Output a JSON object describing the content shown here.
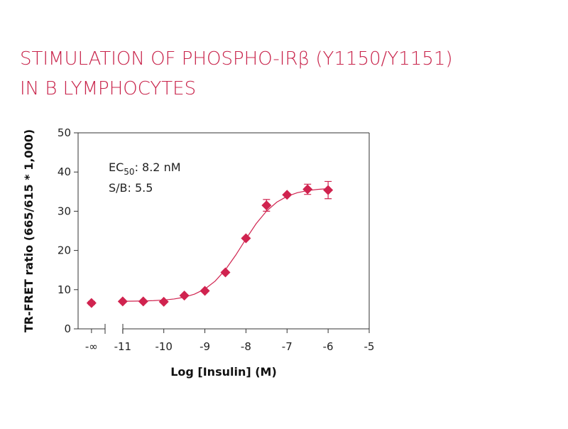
{
  "chart_data": {
    "type": "scatter",
    "title": [
      "STIMULATION OF PHOSPHO-IRβ (Y1150/Y1151)",
      "IN B LYMPHOCYTES"
    ],
    "x_label": "Log [Insulin] (M)",
    "y_label": "TR-FRET ratio (665/615 * 1,000)",
    "annotations": {
      "ec_prefix": "EC",
      "ec_sub": "50",
      "ec_rest": ": 8.2 nM",
      "sb": "S/B: 5.5"
    },
    "xlim": [
      -12.086,
      -5
    ],
    "ylim": [
      0,
      50
    ],
    "xticks": [
      {
        "value": -11.76,
        "label": "-∞"
      },
      -11,
      -10,
      -9,
      -8,
      -7,
      -6,
      -5
    ],
    "yticks": [
      0,
      10,
      20,
      30,
      40,
      50
    ],
    "color": "#d0234f",
    "x": [
      -11.76,
      -11,
      -10.5,
      -10,
      -9.5,
      -9,
      -8.5,
      -8,
      -7.5,
      -7,
      -6.5,
      -6
    ],
    "values": [
      6.6,
      7.0,
      7.0,
      6.9,
      8.5,
      9.7,
      14.4,
      23.1,
      31.5,
      34.2,
      35.6,
      35.4
    ],
    "errors": [
      0.4,
      null,
      null,
      null,
      null,
      null,
      null,
      null,
      1.5,
      null,
      1.3,
      2.2
    ],
    "curve": {
      "x": [
        -11,
        -10.75,
        -10.5,
        -10.25,
        -10,
        -9.75,
        -9.5,
        -9.25,
        -9,
        -8.75,
        -8.5,
        -8.25,
        -8,
        -7.75,
        -7.5,
        -7.25,
        -7,
        -6.75,
        -6.5,
        -6.25,
        -6
      ],
      "values": [
        7.04,
        7.06,
        7.11,
        7.2,
        7.35,
        7.62,
        8.08,
        8.86,
        10.15,
        12.17,
        15.08,
        18.79,
        22.93,
        26.85,
        30.03,
        32.31,
        33.8,
        34.72,
        35.27,
        35.58,
        35.76
      ]
    }
  }
}
